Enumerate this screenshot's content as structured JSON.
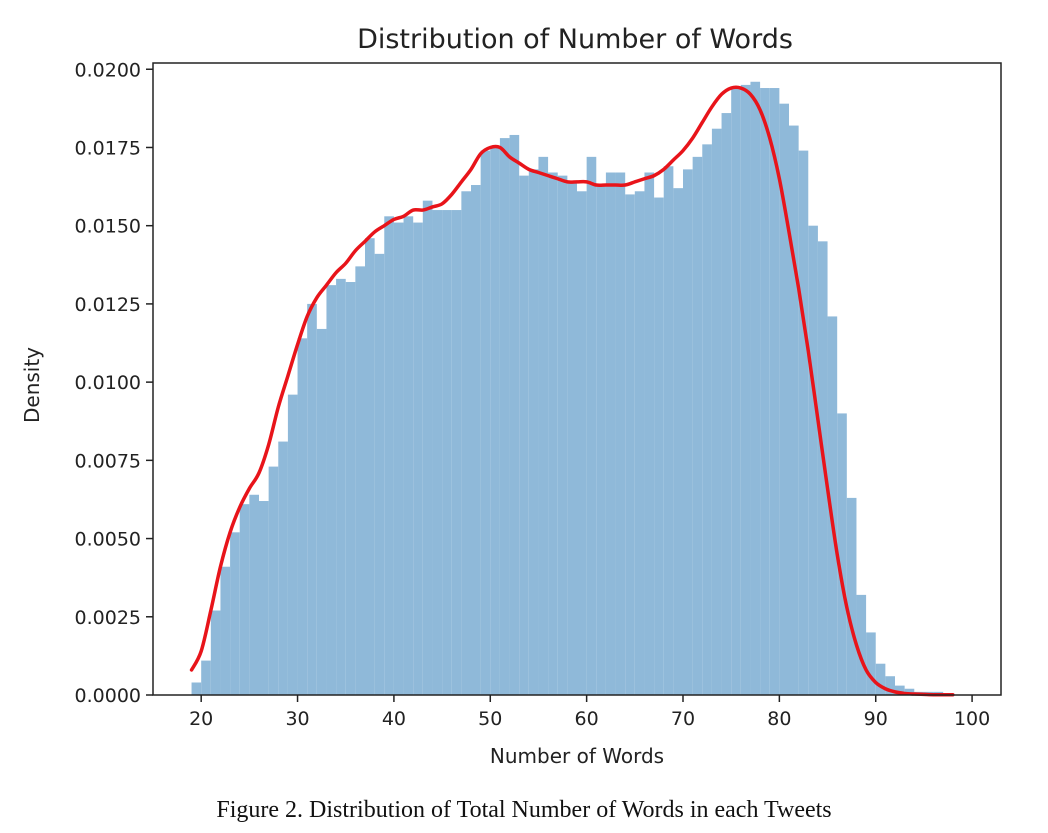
{
  "chart_data": {
    "type": "bar",
    "title": "Distribution of Number of Words",
    "xlabel": "Number of Words",
    "ylabel": "Density",
    "xlim": [
      15,
      103
    ],
    "ylim": [
      0,
      0.0202
    ],
    "xticks": [
      20,
      30,
      40,
      50,
      60,
      70,
      80,
      90,
      100
    ],
    "xtick_labels": [
      "20",
      "30",
      "40",
      "50",
      "60",
      "70",
      "80",
      "90",
      "100"
    ],
    "yticks": [
      0,
      0.0025,
      0.005,
      0.0075,
      0.01,
      0.0125,
      0.015,
      0.0175,
      0.02
    ],
    "ytick_labels": [
      "0.0000",
      "0.0025",
      "0.0050",
      "0.0075",
      "0.0100",
      "0.0125",
      "0.0150",
      "0.0175",
      "0.0200"
    ],
    "histogram": {
      "name": "histogram",
      "color": "#8fb9d9",
      "bin_edges": [
        19,
        20,
        21,
        22,
        23,
        24,
        25,
        26,
        27,
        28,
        29,
        30,
        31,
        32,
        33,
        34,
        35,
        36,
        37,
        38,
        39,
        40,
        41,
        42,
        43,
        44,
        45,
        46,
        47,
        48,
        49,
        50,
        51,
        52,
        53,
        54,
        55,
        56,
        57,
        58,
        59,
        60,
        61,
        62,
        63,
        64,
        65,
        66,
        67,
        68,
        69,
        70,
        71,
        72,
        73,
        74,
        75,
        76,
        77,
        78,
        79,
        80,
        81,
        82,
        83,
        84,
        85,
        86,
        87,
        88,
        89,
        90,
        91,
        92,
        93,
        94,
        95,
        96,
        97,
        98
      ],
      "values": [
        0.0004,
        0.0011,
        0.0027,
        0.0041,
        0.0052,
        0.0061,
        0.0064,
        0.0062,
        0.0073,
        0.0081,
        0.0096,
        0.0114,
        0.0125,
        0.0117,
        0.0131,
        0.0133,
        0.0132,
        0.0137,
        0.0146,
        0.0141,
        0.0153,
        0.0151,
        0.0153,
        0.0151,
        0.0158,
        0.0155,
        0.0155,
        0.0155,
        0.0161,
        0.0163,
        0.0174,
        0.0175,
        0.0178,
        0.0179,
        0.0166,
        0.0168,
        0.0172,
        0.0167,
        0.0166,
        0.0164,
        0.0161,
        0.0172,
        0.0163,
        0.0167,
        0.0167,
        0.016,
        0.0161,
        0.0167,
        0.0159,
        0.0169,
        0.0162,
        0.0168,
        0.0172,
        0.0176,
        0.0181,
        0.0186,
        0.0194,
        0.0195,
        0.0196,
        0.0194,
        0.0194,
        0.0189,
        0.0182,
        0.0174,
        0.015,
        0.0145,
        0.0121,
        0.009,
        0.0063,
        0.0032,
        0.002,
        0.001,
        0.0006,
        0.0003,
        0.0002,
        0.0001,
        0.0001,
        0.0001,
        5e-05
      ]
    },
    "kde": {
      "name": "kde",
      "color": "#e8141a",
      "x": [
        19,
        20,
        21,
        22,
        23,
        24,
        25,
        26,
        27,
        28,
        29,
        30,
        31,
        32,
        33,
        34,
        35,
        36,
        37,
        38,
        39,
        40,
        41,
        42,
        43,
        44,
        45,
        46,
        47,
        48,
        49,
        50,
        51,
        52,
        53,
        54,
        55,
        56,
        57,
        58,
        59,
        60,
        61,
        62,
        63,
        64,
        65,
        66,
        67,
        68,
        69,
        70,
        71,
        72,
        73,
        74,
        75,
        76,
        77,
        78,
        79,
        80,
        81,
        82,
        83,
        84,
        85,
        86,
        87,
        88,
        89,
        90,
        91,
        92,
        93,
        94,
        95,
        96,
        97,
        98
      ],
      "y": [
        0.0008,
        0.0014,
        0.0027,
        0.0041,
        0.0052,
        0.006,
        0.0066,
        0.0071,
        0.008,
        0.0092,
        0.0102,
        0.0112,
        0.0121,
        0.0127,
        0.0131,
        0.0135,
        0.0138,
        0.0142,
        0.0145,
        0.0148,
        0.015,
        0.0152,
        0.0153,
        0.0155,
        0.0155,
        0.0156,
        0.0157,
        0.016,
        0.0164,
        0.0168,
        0.0173,
        0.0175,
        0.0175,
        0.0172,
        0.017,
        0.0168,
        0.0167,
        0.0166,
        0.0165,
        0.0164,
        0.0164,
        0.0164,
        0.0163,
        0.0163,
        0.0163,
        0.0163,
        0.0164,
        0.0165,
        0.0166,
        0.0168,
        0.0171,
        0.0174,
        0.0178,
        0.0183,
        0.0188,
        0.0192,
        0.0194,
        0.0194,
        0.0192,
        0.0187,
        0.0178,
        0.0165,
        0.0148,
        0.013,
        0.011,
        0.0088,
        0.0066,
        0.0045,
        0.0028,
        0.0016,
        0.0008,
        0.0004,
        0.0002,
        0.0001,
        5e-05,
        3e-05,
        2e-05,
        1e-05,
        1e-05,
        1e-05
      ]
    }
  },
  "caption": "Figure 2. Distribution of Total Number of Words in each Tweets"
}
